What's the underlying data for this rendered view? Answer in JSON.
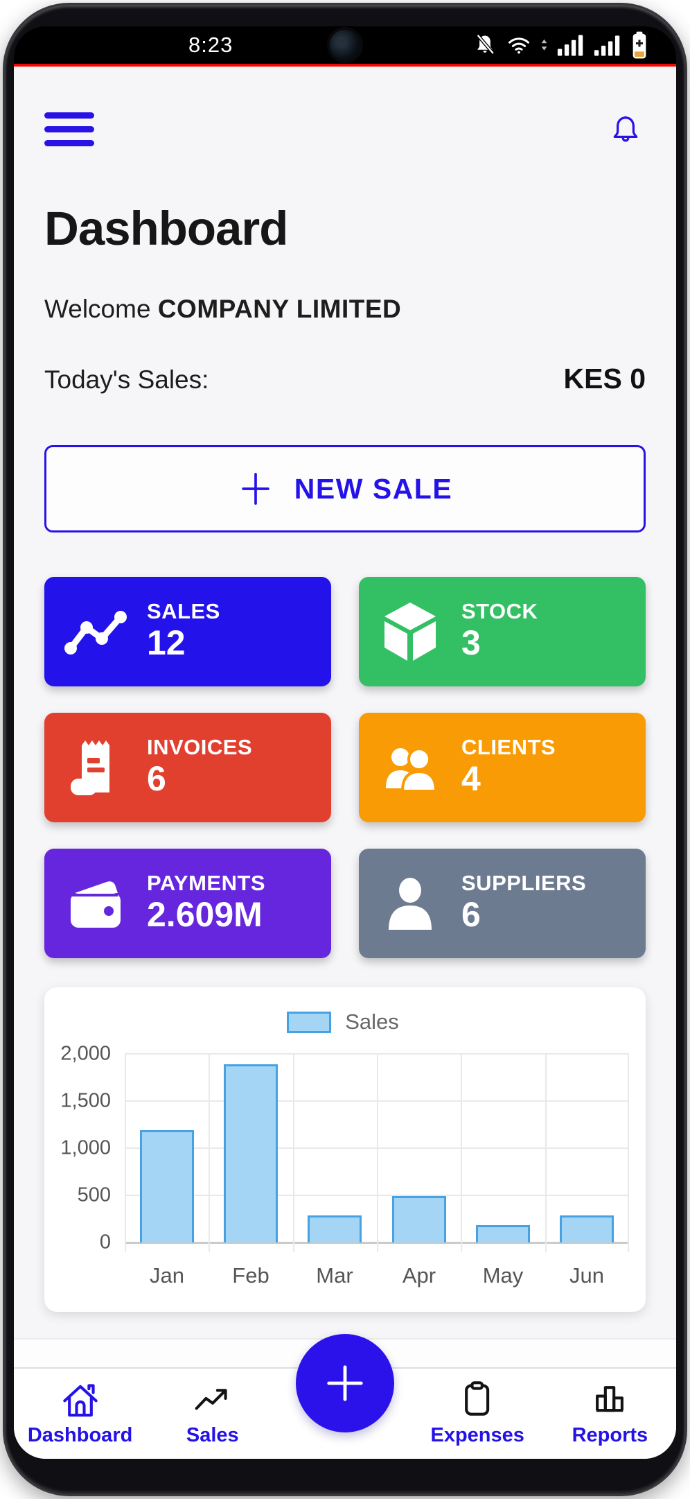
{
  "status_bar": {
    "time": "8:23",
    "icons": [
      "notifications-off-icon",
      "wifi-icon",
      "updown-arrows-icon",
      "cell-signal-icon",
      "cell-signal2-icon",
      "battery-saver-icon"
    ]
  },
  "header": {
    "menu_icon": "menu-icon",
    "bell_icon": "bell-icon"
  },
  "page": {
    "title": "Dashboard",
    "welcome_prefix": "Welcome ",
    "company": "COMPANY LIMITED",
    "todays_sales_label": "Today's Sales:",
    "todays_sales_value": "KES 0"
  },
  "new_sale": {
    "label": "NEW SALE",
    "plus_icon": "plus-icon"
  },
  "stat_cards": [
    {
      "id": "sales",
      "label": "SALES",
      "value": "12",
      "color": "#2313ea",
      "icon": "trend-icon"
    },
    {
      "id": "stock",
      "label": "STOCK",
      "value": "3",
      "color": "#33bf63",
      "icon": "cube-icon"
    },
    {
      "id": "invoices",
      "label": "INVOICES",
      "value": "6",
      "color": "#e2402f",
      "icon": "receipt-icon"
    },
    {
      "id": "clients",
      "label": "CLIENTS",
      "value": "4",
      "color": "#f89b05",
      "icon": "people-icon"
    },
    {
      "id": "payments",
      "label": "PAYMENTS",
      "value": "2.609M",
      "color": "#6526dd",
      "icon": "wallet-icon"
    },
    {
      "id": "suppliers",
      "label": "SUPPLIERS",
      "value": "6",
      "color": "#6d7b90",
      "icon": "person-icon"
    }
  ],
  "chart_data": {
    "type": "bar",
    "title": "",
    "legend_position": "top",
    "categories": [
      "Jan",
      "Feb",
      "Mar",
      "Apr",
      "May",
      "Jun"
    ],
    "series": [
      {
        "name": "Sales",
        "values": [
          1190,
          1890,
          290,
          495,
          185,
          290
        ]
      }
    ],
    "ylim": [
      0,
      2000
    ],
    "yticks": [
      0,
      500,
      1000,
      1500,
      2000
    ],
    "ytick_labels": [
      "0",
      "500",
      "1,000",
      "1,500",
      "2,000"
    ],
    "grid": true,
    "bar_fill": "#a5d5f5",
    "bar_border": "#46a2e2"
  },
  "bottom_nav": {
    "items": [
      {
        "label": "Dashboard",
        "icon": "home-icon",
        "active": true
      },
      {
        "label": "Sales",
        "icon": "trending-up-icon",
        "active": false
      },
      {
        "label": "Expenses",
        "icon": "clipboard-icon",
        "active": false
      },
      {
        "label": "Reports",
        "icon": "bar-chart-icon",
        "active": false
      }
    ],
    "fab_icon": "plus-icon"
  },
  "colors": {
    "primary_blue": "#2a12e6",
    "divider_red": "#ef0b03",
    "app_background": "#f6f6f8",
    "battery_saver_orange": "#e8a33d"
  }
}
